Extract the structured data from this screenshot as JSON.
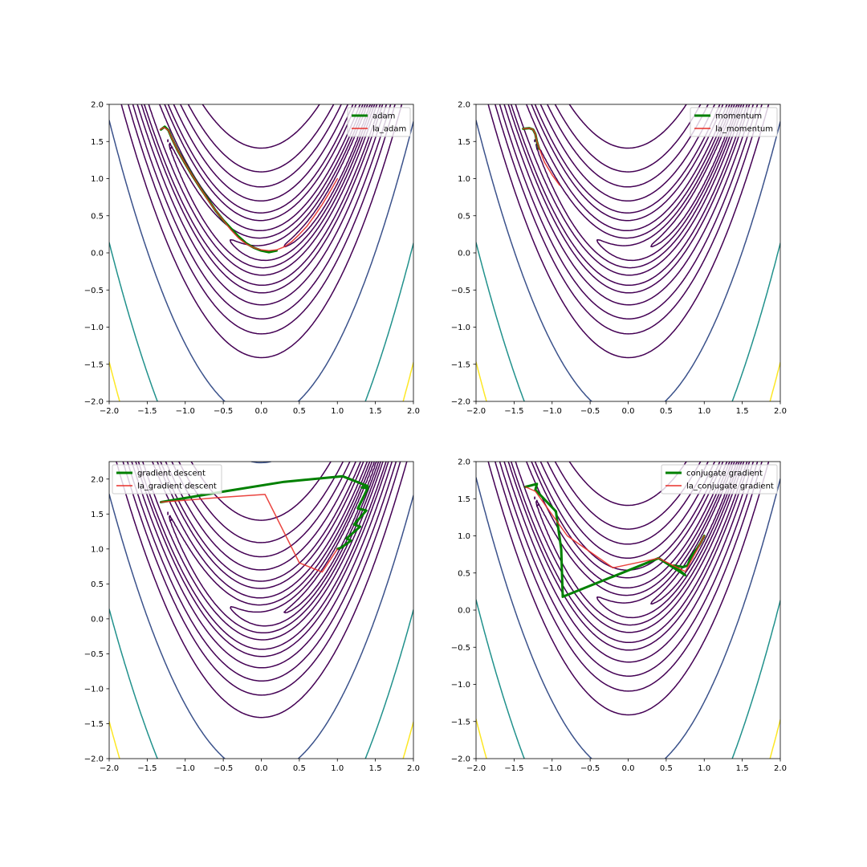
{
  "figure": {
    "background": "#ffffff"
  },
  "contour_function": "rosenbrock f(x,y) = (1-x)^2 + 100(y-x^2)^2",
  "contour_levels": [
    0.5,
    2,
    5,
    10,
    20,
    30,
    50,
    80,
    120,
    200,
    500,
    1500,
    3000
  ],
  "contour_colors": [
    "#440154",
    "#440154",
    "#440154",
    "#440154",
    "#440154",
    "#440154",
    "#440154",
    "#440154",
    "#440154",
    "#440154",
    "#3b528b",
    "#21918c",
    "#fde725"
  ],
  "chart_data": [
    {
      "type": "line",
      "xlim": [
        -2.0,
        2.0
      ],
      "ylim": [
        -2.0,
        2.0
      ],
      "x_ticks": [
        "−2.0",
        "−1.5",
        "−1.0",
        "−0.5",
        "0.0",
        "0.5",
        "1.0",
        "1.5",
        "2.0"
      ],
      "y_ticks": [
        "−2.0",
        "−1.5",
        "−1.0",
        "−0.5",
        "0.0",
        "0.5",
        "1.0",
        "1.5",
        "2.0"
      ],
      "legend_position": "upper right",
      "series": [
        {
          "name": "adam",
          "color": "#008000",
          "width": 3,
          "x": [
            -1.32,
            -1.27,
            -1.22,
            -1.18,
            -1.1,
            -1.0,
            -0.9,
            -0.8,
            -0.7,
            -0.6,
            -0.5,
            -0.4,
            -0.3,
            -0.2,
            -0.1,
            0.0,
            0.1,
            0.15,
            0.2
          ],
          "y": [
            1.66,
            1.7,
            1.65,
            1.55,
            1.38,
            1.2,
            1.03,
            0.87,
            0.72,
            0.57,
            0.44,
            0.33,
            0.22,
            0.13,
            0.07,
            0.03,
            0.01,
            0.02,
            0.03
          ]
        },
        {
          "name": "la_adam",
          "color": "#e8302a",
          "width": 1.5,
          "x": [
            -1.33,
            -1.28,
            -1.22,
            -1.18,
            -1.1,
            -1.0,
            -0.9,
            -0.8,
            -0.7,
            -0.6,
            -0.5,
            -0.4,
            -0.3,
            -0.2,
            -0.1,
            0.0,
            0.1,
            0.2,
            0.3,
            0.4,
            0.5,
            0.6,
            0.7,
            0.8,
            0.9,
            1.0
          ],
          "y": [
            1.66,
            1.69,
            1.65,
            1.55,
            1.38,
            1.2,
            1.03,
            0.87,
            0.71,
            0.57,
            0.44,
            0.31,
            0.2,
            0.12,
            0.07,
            0.04,
            0.03,
            0.04,
            0.08,
            0.15,
            0.25,
            0.36,
            0.5,
            0.65,
            0.82,
            1.0
          ]
        }
      ]
    },
    {
      "type": "line",
      "xlim": [
        -2.0,
        2.0
      ],
      "ylim": [
        -2.0,
        2.0
      ],
      "x_ticks": [
        "−2.0",
        "−1.5",
        "−1.0",
        "−0.5",
        "0.0",
        "0.5",
        "1.0",
        "1.5",
        "2.0"
      ],
      "y_ticks": [
        "−2.0",
        "−1.5",
        "−1.0",
        "−0.5",
        "0.0",
        "0.5",
        "1.0",
        "1.5",
        "2.0"
      ],
      "legend_position": "upper right",
      "series": [
        {
          "name": "momentum",
          "color": "#008000",
          "width": 3,
          "x": [
            -1.38,
            -1.3,
            -1.25,
            -1.22,
            -1.2,
            -1.17
          ],
          "y": [
            1.67,
            1.68,
            1.66,
            1.6,
            1.5,
            1.4
          ]
        },
        {
          "name": "la_momentum",
          "color": "#e8302a",
          "width": 1.5,
          "x": [
            -1.38,
            -1.3,
            -1.25,
            -1.22,
            -1.2,
            -1.16,
            -1.1,
            -1.0,
            -0.9
          ],
          "y": [
            1.67,
            1.68,
            1.66,
            1.6,
            1.5,
            1.38,
            1.22,
            1.05,
            0.91
          ]
        }
      ]
    },
    {
      "type": "line",
      "xlim": [
        -2.0,
        2.0
      ],
      "ylim": [
        -2.0,
        2.25
      ],
      "x_ticks": [
        "−2.0",
        "−1.5",
        "−1.0",
        "−0.5",
        "0.0",
        "0.5",
        "1.0",
        "1.5",
        "2.0"
      ],
      "y_ticks": [
        "−2.0",
        "−1.5",
        "−1.0",
        "−0.5",
        "0.0",
        "0.5",
        "1.0",
        "1.5",
        "2.0"
      ],
      "legend_position": "upper left",
      "series": [
        {
          "name": "gradient descent",
          "color": "#008000",
          "width": 3,
          "x": [
            -1.32,
            -0.5,
            0.3,
            1.07,
            1.4,
            1.32,
            1.4,
            1.27,
            1.38,
            1.22,
            1.3,
            1.12,
            1.18,
            1.05,
            1.0
          ],
          "y": [
            1.67,
            1.82,
            1.96,
            2.04,
            1.9,
            1.88,
            1.87,
            1.58,
            1.55,
            1.35,
            1.32,
            1.15,
            1.12,
            1.02,
            1.0
          ]
        },
        {
          "name": "la_gradient descent",
          "color": "#e8302a",
          "width": 1.5,
          "x": [
            -1.32,
            -0.5,
            0.05,
            0.5,
            0.8,
            1.0
          ],
          "y": [
            1.67,
            1.74,
            1.78,
            0.8,
            0.67,
            1.0
          ]
        }
      ]
    },
    {
      "type": "line",
      "xlim": [
        -2.0,
        2.0
      ],
      "ylim": [
        -2.0,
        2.0
      ],
      "x_ticks": [
        "−2.0",
        "−1.5",
        "−1.0",
        "−0.5",
        "0.0",
        "0.5",
        "1.0",
        "1.5",
        "2.0"
      ],
      "y_ticks": [
        "−2.0",
        "−1.5",
        "−1.0",
        "−0.5",
        "0.0",
        "0.5",
        "1.0",
        "1.5",
        "2.0"
      ],
      "legend_position": "upper right",
      "series": [
        {
          "name": "conjugate gradient",
          "color": "#008000",
          "width": 3,
          "x": [
            -1.35,
            -1.2,
            -1.22,
            -0.95,
            -0.88,
            -0.86,
            0.4,
            0.75,
            0.6,
            0.72,
            0.78,
            0.82,
            0.86,
            0.9,
            0.95,
            1.0
          ],
          "y": [
            1.66,
            1.7,
            1.62,
            1.33,
            0.82,
            0.18,
            0.7,
            0.47,
            0.6,
            0.58,
            0.6,
            0.7,
            0.77,
            0.82,
            0.9,
            1.0
          ]
        },
        {
          "name": "la_conjugate gradient",
          "color": "#e8302a",
          "width": 1.5,
          "x": [
            -1.35,
            -1.22,
            -0.8,
            -0.2,
            0.4,
            0.75,
            0.9,
            1.0
          ],
          "y": [
            1.66,
            1.6,
            1.0,
            0.57,
            0.7,
            0.52,
            0.8,
            1.0
          ]
        }
      ]
    }
  ]
}
